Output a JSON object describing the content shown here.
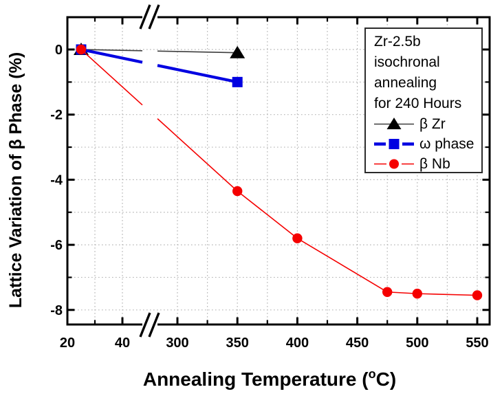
{
  "chart_data": {
    "type": "line",
    "title": "",
    "xlabel": "Annealing Temperature (°C)",
    "ylabel": "Lattice Variation of β Phase (%)",
    "x_axis_break_between": [
      45,
      290
    ],
    "x_ticks_major": [
      20,
      40,
      300,
      350,
      400,
      450,
      500,
      550
    ],
    "x_ticks_minor": [
      30,
      325,
      375,
      425,
      475,
      525
    ],
    "y_ticks_major": [
      0,
      -2,
      -4,
      -6,
      -8
    ],
    "y_ticks_minor": [
      -1,
      -3,
      -5,
      -7
    ],
    "ylim": [
      -8.45,
      1.0
    ],
    "grid": "dotted-both-axes-every-tick",
    "legend": {
      "position": "upper-right",
      "title_lines": [
        "Zr-2.5b",
        "isochronal",
        "annealing",
        "for 240 Hours"
      ]
    },
    "series": [
      {
        "name": "β Zr",
        "marker": "triangle",
        "color": "#000000",
        "line_color": "#3d3d3d",
        "line": "thin-solid",
        "x": [
          25,
          350
        ],
        "y": [
          0,
          -0.1
        ]
      },
      {
        "name": "ω phase",
        "marker": "square",
        "color": "#0000e1",
        "line_color": "#0000e1",
        "line": "thick-solid",
        "x": [
          25,
          350
        ],
        "y": [
          0,
          -1.0
        ]
      },
      {
        "name": "β Nb",
        "marker": "circle",
        "color": "#f50000",
        "line_color": "#f50000",
        "line": "thin-solid",
        "x": [
          25,
          350,
          400,
          475,
          500,
          550
        ],
        "y": [
          0,
          -4.35,
          -5.8,
          -7.45,
          -7.5,
          -7.55
        ]
      }
    ]
  }
}
